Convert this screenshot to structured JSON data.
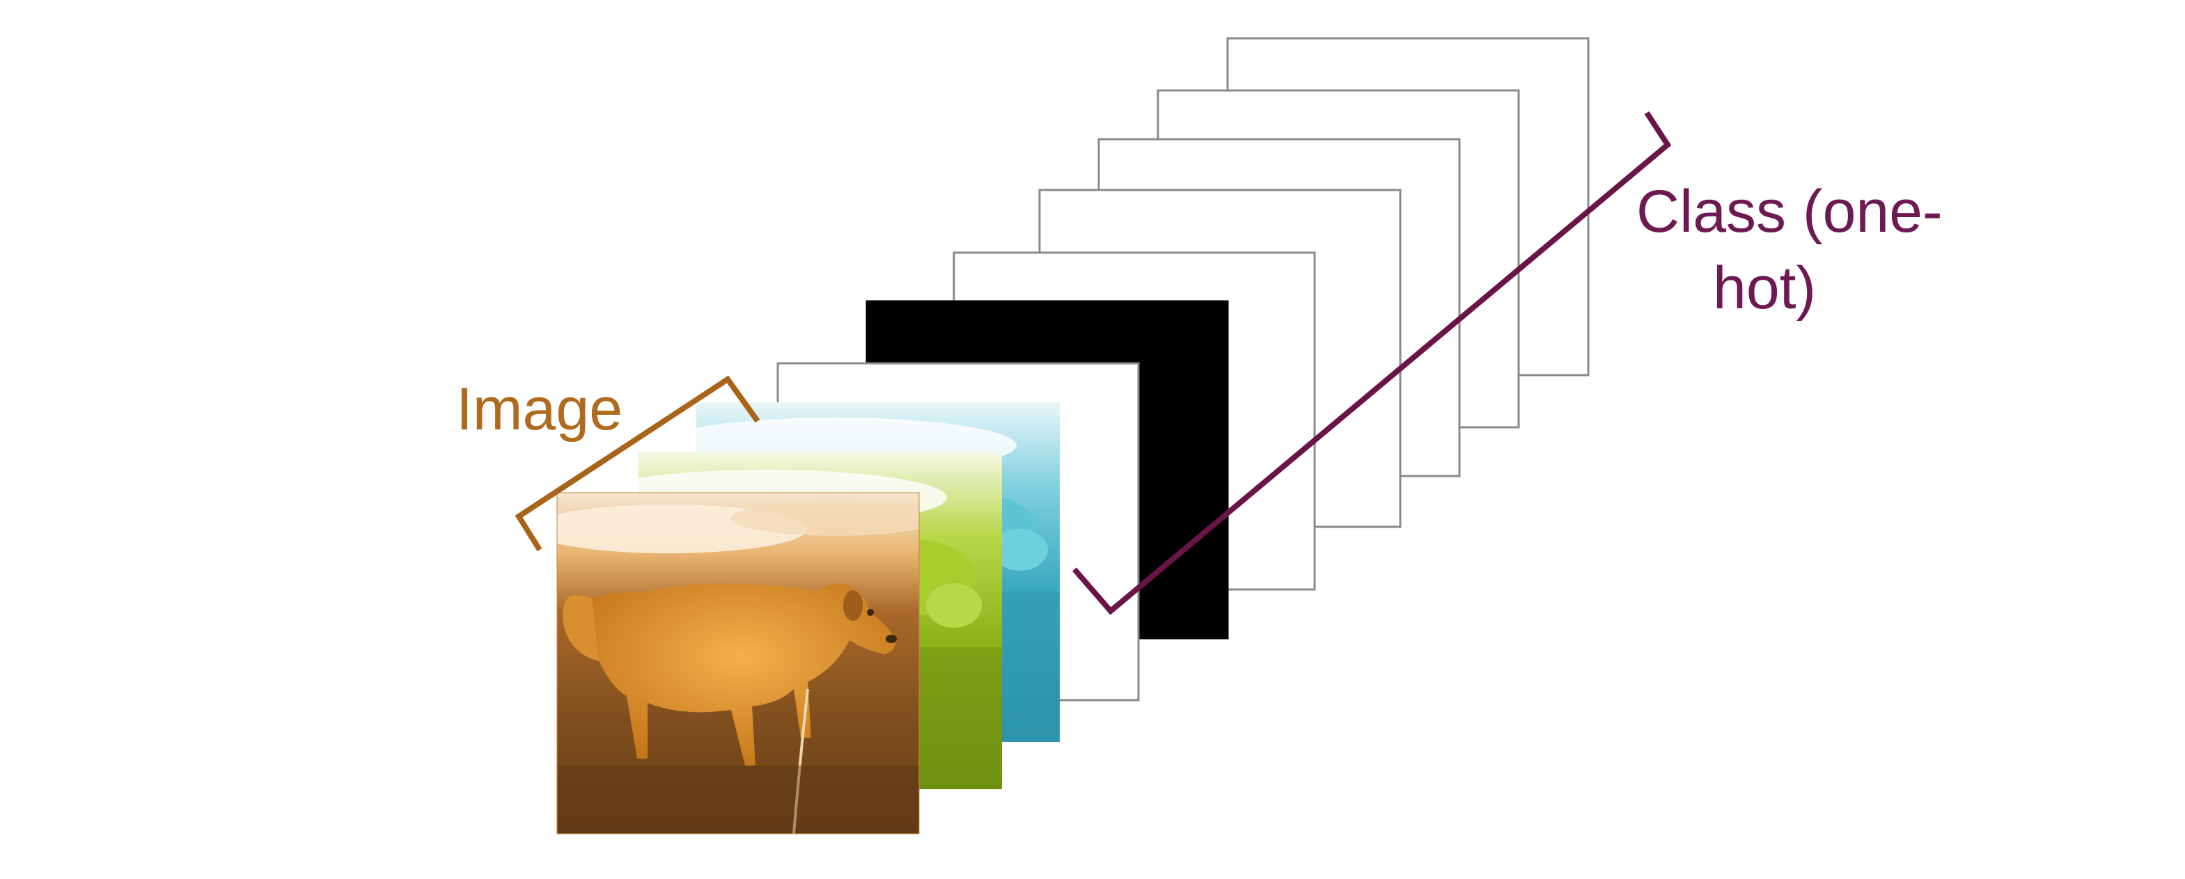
{
  "labels": {
    "image": "Image",
    "class_line1": "Class (one-",
    "class_line2": "hot)"
  },
  "colors": {
    "background": "#ffffff",
    "image_label": "#b06a1e",
    "image_bracket": "#a86418",
    "class_label": "#6e1a52",
    "class_bracket": "#6b1448",
    "frame_stroke": "#8a8a8a",
    "black_frame": "#000000",
    "channel_red": "#c57a1c",
    "channel_green": "#8fb41a",
    "channel_blue": "#4fb6c9"
  },
  "diagram": {
    "image_channels": [
      {
        "name": "cyan-channel",
        "color": "channel_blue"
      },
      {
        "name": "green-channel",
        "color": "channel_green"
      },
      {
        "name": "orange-channel",
        "color": "channel_red"
      }
    ],
    "class_planes": [
      {
        "name": "class-plane-1",
        "fill": "white"
      },
      {
        "name": "class-plane-2",
        "fill": "black"
      },
      {
        "name": "class-plane-3",
        "fill": "white"
      },
      {
        "name": "class-plane-4",
        "fill": "white"
      },
      {
        "name": "class-plane-5",
        "fill": "white"
      },
      {
        "name": "class-plane-6",
        "fill": "white"
      },
      {
        "name": "class-plane-7",
        "fill": "white"
      }
    ]
  }
}
